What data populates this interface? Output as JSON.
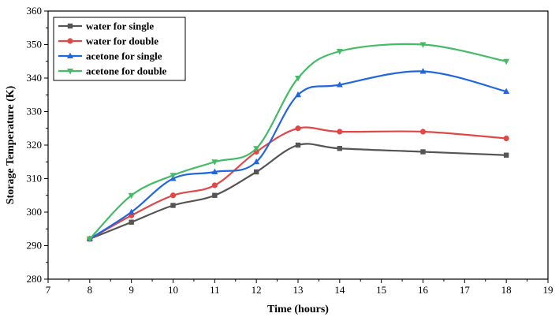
{
  "chart_data": {
    "type": "line",
    "title": "",
    "xlabel": "Time (hours)",
    "ylabel": "Storage Temperature (K)",
    "xlim": [
      7,
      19
    ],
    "ylim": [
      280,
      360
    ],
    "xticks": [
      7,
      8,
      9,
      10,
      11,
      12,
      13,
      14,
      15,
      16,
      17,
      18,
      19
    ],
    "yticks": [
      280,
      290,
      300,
      310,
      320,
      330,
      340,
      350,
      360
    ],
    "x": [
      8,
      9,
      10,
      11,
      12,
      13,
      14,
      16,
      18
    ],
    "grid": false,
    "legend_position": "top-left",
    "series": [
      {
        "name": "water for single",
        "color": "#555555",
        "marker": "square",
        "values": [
          292,
          297,
          302,
          305,
          312,
          320,
          319,
          318,
          317
        ]
      },
      {
        "name": "water for double",
        "color": "#e04848",
        "marker": "circle",
        "values": [
          292,
          299,
          305,
          308,
          318,
          325,
          324,
          324,
          322
        ]
      },
      {
        "name": "acetone for single",
        "color": "#2266dd",
        "marker": "triangle-up",
        "values": [
          292,
          300,
          310,
          312,
          315,
          335,
          338,
          342,
          336
        ]
      },
      {
        "name": "acetone for double",
        "color": "#44bb66",
        "marker": "triangle-down",
        "values": [
          292,
          305,
          311,
          315,
          319,
          340,
          348,
          350,
          345
        ]
      }
    ]
  }
}
